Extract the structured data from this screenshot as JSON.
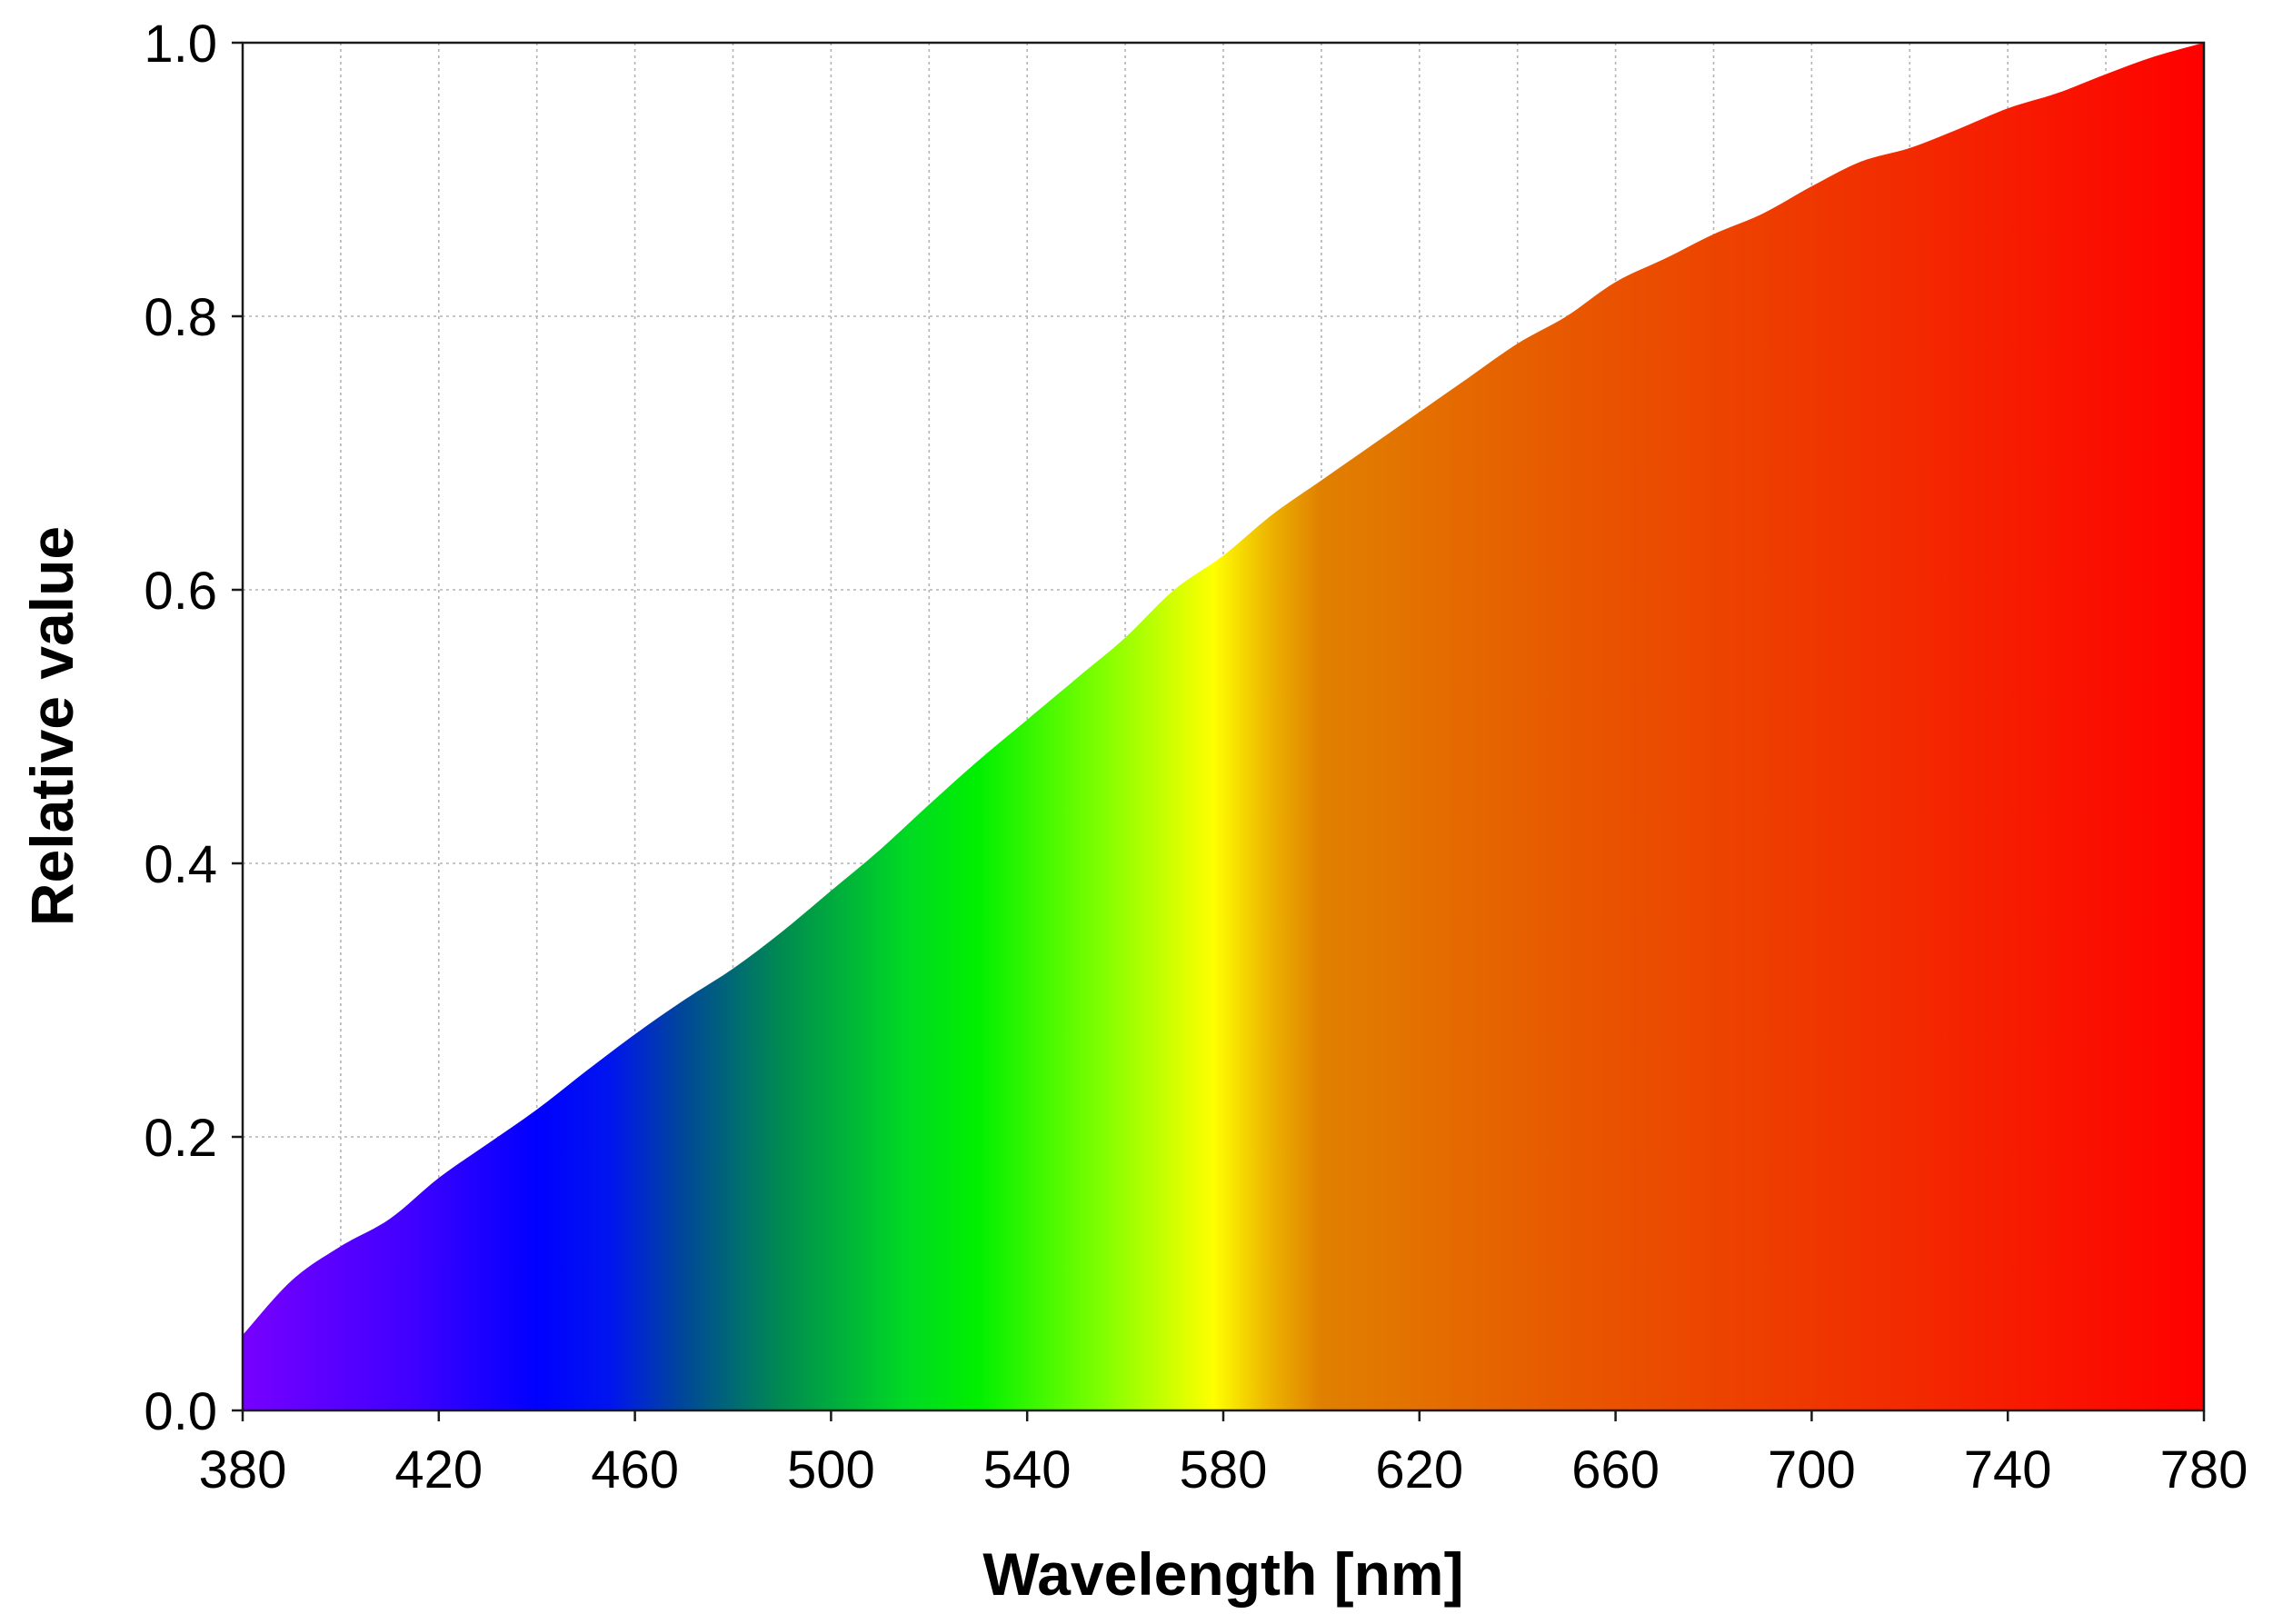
{
  "chart_data": {
    "type": "area",
    "title": "",
    "xlabel": "Wavelength [nm]",
    "ylabel": "Relative value",
    "xlim": [
      380,
      780
    ],
    "ylim": [
      0.0,
      1.0
    ],
    "x_ticks": [
      "380",
      "420",
      "460",
      "500",
      "540",
      "580",
      "620",
      "660",
      "700",
      "740",
      "780"
    ],
    "y_ticks": [
      "0.0",
      "0.2",
      "0.4",
      "0.6",
      "0.8",
      "1.0"
    ],
    "grid": true,
    "x_grid_step": 20,
    "y_grid_step": 0.2,
    "fill": "visible-spectrum color gradient",
    "x": [
      380,
      390,
      400,
      410,
      420,
      430,
      440,
      450,
      460,
      470,
      480,
      490,
      500,
      510,
      520,
      530,
      540,
      550,
      560,
      570,
      580,
      590,
      600,
      610,
      620,
      630,
      640,
      650,
      660,
      670,
      680,
      690,
      700,
      710,
      720,
      730,
      740,
      750,
      760,
      770,
      780
    ],
    "values": [
      0.055,
      0.095,
      0.12,
      0.14,
      0.17,
      0.195,
      0.22,
      0.248,
      0.275,
      0.3,
      0.323,
      0.35,
      0.38,
      0.41,
      0.443,
      0.475,
      0.505,
      0.535,
      0.565,
      0.6,
      0.625,
      0.655,
      0.68,
      0.705,
      0.73,
      0.755,
      0.78,
      0.8,
      0.825,
      0.842,
      0.86,
      0.875,
      0.895,
      0.913,
      0.923,
      0.937,
      0.952,
      0.963,
      0.977,
      0.99,
      1.0
    ],
    "gradient_stops": [
      {
        "wavelength": 380,
        "color": "#7700ff"
      },
      {
        "wavelength": 415,
        "color": "#3f00ff"
      },
      {
        "wavelength": 440,
        "color": "#0000ff"
      },
      {
        "wavelength": 455,
        "color": "#0015ee"
      },
      {
        "wavelength": 470,
        "color": "#004898"
      },
      {
        "wavelength": 490,
        "color": "#008b50"
      },
      {
        "wavelength": 515,
        "color": "#00d825"
      },
      {
        "wavelength": 530,
        "color": "#00f000"
      },
      {
        "wavelength": 555,
        "color": "#7fff00"
      },
      {
        "wavelength": 578,
        "color": "#ffff00"
      },
      {
        "wavelength": 590,
        "color": "#ecb000"
      },
      {
        "wavelength": 600,
        "color": "#e08000"
      },
      {
        "wavelength": 650,
        "color": "#e85800"
      },
      {
        "wavelength": 720,
        "color": "#f22a00"
      },
      {
        "wavelength": 780,
        "color": "#ff0000"
      }
    ]
  }
}
